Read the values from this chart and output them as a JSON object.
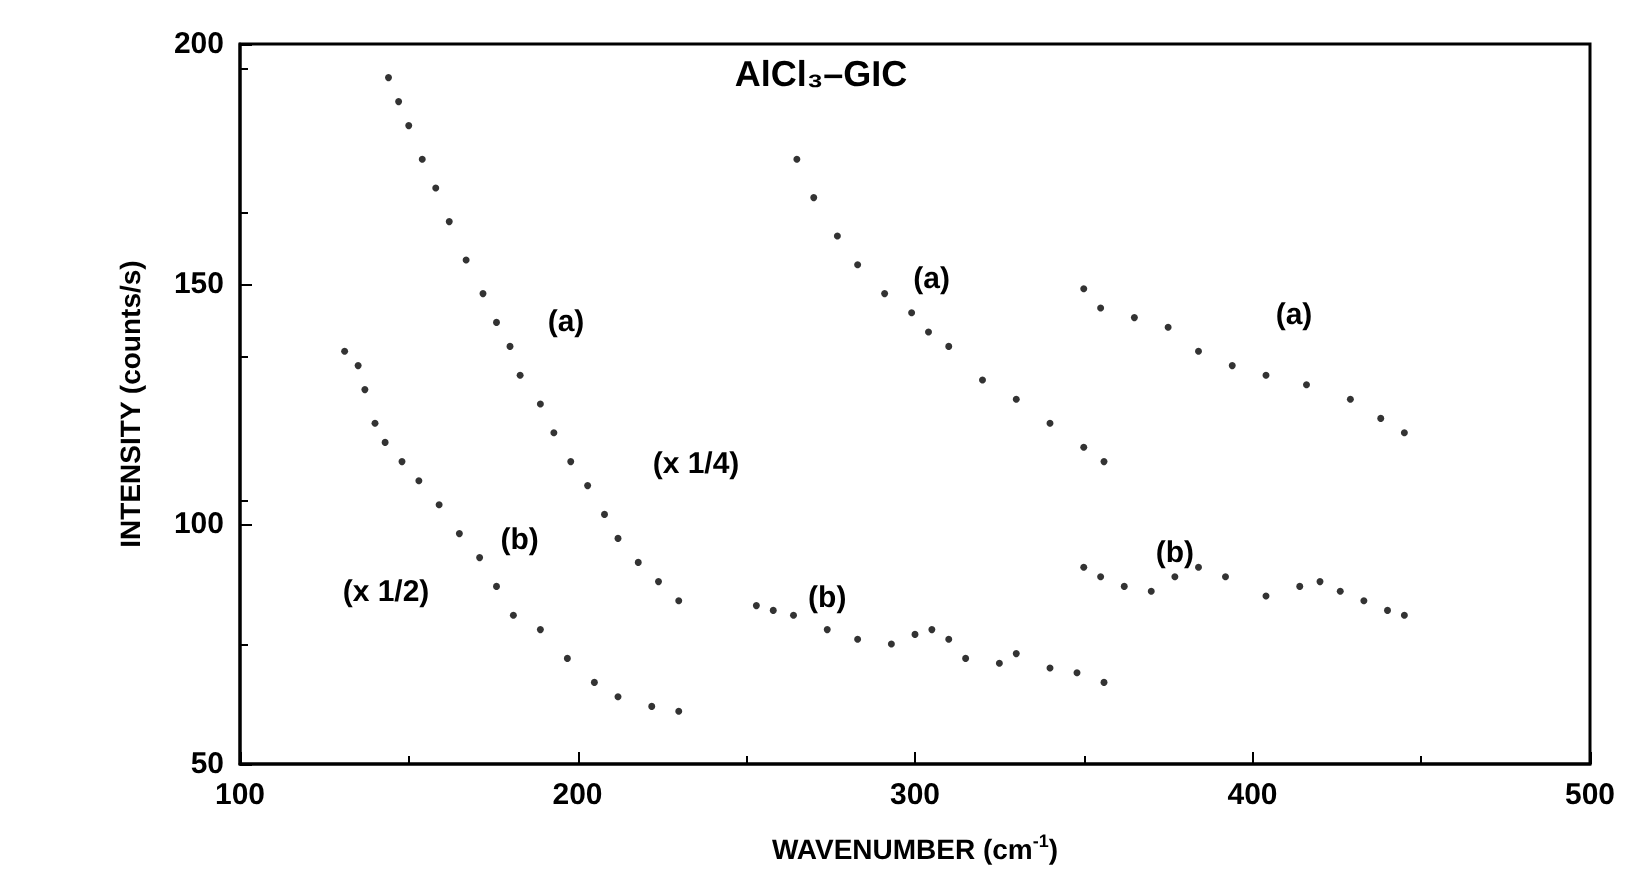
{
  "chart_data": {
    "type": "scatter",
    "title": "AlCl₃–GIC",
    "xlabel": "WAVENUMBER (cm$^{-1}$)",
    "ylabel": "INTENSITY (counts/s)",
    "xlim": [
      100,
      500
    ],
    "xticks": [
      100,
      200,
      300,
      400,
      500
    ],
    "ylim": [
      50,
      200
    ],
    "yticks": [
      50,
      100,
      150,
      200
    ],
    "grid": false,
    "marker": "circle",
    "series": [
      {
        "name": "(a)",
        "color": "#000000",
        "x": [
          144,
          147,
          150,
          154,
          158,
          162,
          167,
          172,
          176,
          180,
          183,
          189,
          193,
          198,
          203,
          208,
          212,
          218,
          224,
          230
        ],
        "values": [
          193,
          188,
          183,
          176,
          170,
          163,
          155,
          148,
          142,
          137,
          131,
          125,
          119,
          113,
          108,
          102,
          97,
          92,
          88,
          84
        ]
      },
      {
        "name": "(b)",
        "color": "#000000",
        "x": [
          131,
          135,
          137,
          140,
          143,
          148,
          153,
          159,
          165,
          171,
          176,
          181,
          189,
          197,
          205,
          212,
          222,
          230
        ],
        "values": [
          136,
          133,
          128,
          121,
          117,
          113,
          109,
          104,
          98,
          93,
          87,
          81,
          78,
          72,
          67,
          64,
          62,
          61
        ]
      },
      {
        "name": "(a)",
        "color": "#000000",
        "x": [
          265,
          270,
          277,
          283,
          291,
          299,
          304,
          310,
          320,
          330,
          340,
          350,
          356
        ],
        "values": [
          176,
          168,
          160,
          154,
          148,
          144,
          140,
          137,
          130,
          126,
          121,
          116,
          113
        ]
      },
      {
        "name": "(b)",
        "color": "#000000",
        "x": [
          253,
          258,
          264,
          274,
          283,
          293,
          300,
          305,
          310,
          315,
          325,
          330,
          340,
          348,
          356
        ],
        "values": [
          83,
          82,
          81,
          78,
          76,
          75,
          77,
          78,
          76,
          72,
          71,
          73,
          70,
          69,
          67
        ]
      },
      {
        "name": "(a)",
        "color": "#000000",
        "x": [
          350,
          355,
          365,
          375,
          384,
          394,
          404,
          416,
          429,
          438,
          445
        ],
        "values": [
          149,
          145,
          143,
          141,
          136,
          133,
          131,
          129,
          126,
          122,
          119
        ]
      },
      {
        "name": "(b)",
        "color": "#000000",
        "x": [
          350,
          355,
          362,
          370,
          377,
          384,
          392,
          404,
          414,
          420,
          426,
          433,
          440,
          445
        ],
        "values": [
          91,
          89,
          87,
          86,
          89,
          91,
          89,
          85,
          87,
          88,
          86,
          84,
          82,
          81
        ]
      }
    ],
    "annotations": [
      "(x 1/4)",
      "(x 1/2)"
    ]
  }
}
